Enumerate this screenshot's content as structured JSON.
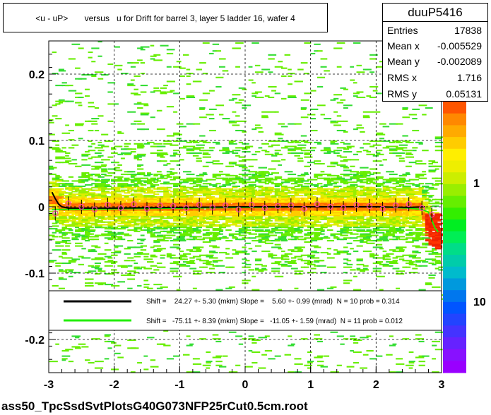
{
  "title": "<u - uP>       versus   u for Drift for barrel 3, layer 5 ladder 16, wafer 4",
  "stats": {
    "name": "duuP5416",
    "rows": [
      {
        "label": "Entries",
        "value": "17838"
      },
      {
        "label": "Mean x",
        "value": "-0.005529"
      },
      {
        "label": "Mean y",
        "value": "-0.002089"
      },
      {
        "label": "RMS x",
        "value": "1.716"
      },
      {
        "label": "RMS y",
        "value": "0.05131"
      }
    ]
  },
  "footer": "ass50_TpcSsdSvtPlotsG40G073NFP25rCut0.5cm.root",
  "colors": {
    "black_fit": "#000000",
    "green_fit": "#22ee00",
    "profile_marker": "#ff44aa",
    "band_core": "#ff6600"
  },
  "chart_data": {
    "type": "heatmap",
    "xlim": [
      -3,
      3
    ],
    "ylim": [
      -0.25,
      0.25
    ],
    "x_ticks": [
      -3,
      -2,
      -1,
      0,
      1,
      2,
      3
    ],
    "y_ticks": [
      0.2,
      0.1,
      0,
      -0.1,
      -0.2
    ],
    "x_tick_labels": [
      "-3",
      "-2",
      "-1",
      "0",
      "1",
      "2",
      "3"
    ],
    "y_tick_labels": [
      "0.2",
      "0.1",
      "0",
      "-0.1",
      "-0.2"
    ],
    "grid": true,
    "colorbar": {
      "labels": [
        "1",
        "10"
      ],
      "label_positions": [
        1,
        10
      ]
    },
    "legend": {
      "placement": "lower-center",
      "entries": [
        {
          "color": "#000000",
          "text": "Shift =    24.27 +- 5.30 (mkm) Slope =    5.60 +- 0.99 (mrad)  N = 10 prob = 0.314"
        },
        {
          "color": "#22ee00",
          "text": "Shift =   -75.11 +- 8.39 (mkm) Slope =   -11.05 +- 1.59 (mrad)  N = 11 prob = 0.012"
        }
      ]
    },
    "profile": {
      "x": [
        -2.9,
        -2.7,
        -2.5,
        -2.3,
        -2.1,
        -1.9,
        -1.7,
        -1.5,
        -1.3,
        -1.1,
        -0.9,
        -0.7,
        -0.5,
        -0.3,
        -0.1,
        0.1,
        0.3,
        0.5,
        0.7,
        0.9,
        1.1,
        1.3,
        1.5,
        1.7,
        1.9,
        2.1,
        2.3,
        2.5,
        2.7,
        2.85
      ],
      "y": [
        -0.01,
        0.005,
        0.0,
        -0.004,
        0.003,
        -0.002,
        0.004,
        -0.003,
        0.002,
        0.001,
        -0.002,
        0.003,
        -0.001,
        0.002,
        -0.004,
        0.003,
        -0.002,
        0.001,
        0.002,
        -0.003,
        0.004,
        0.0,
        -0.002,
        0.003,
        0.001,
        -0.003,
        0.002,
        0.004,
        -0.002,
        -0.012
      ]
    },
    "black_fit": {
      "x": [
        -2.95,
        -2.9,
        -2.85,
        -2.8,
        -2.7,
        -2.5,
        -2.0,
        -1.0,
        0.0,
        1.0,
        2.0,
        2.5,
        2.75
      ],
      "y": [
        0.022,
        0.012,
        0.004,
        0.0,
        -0.002,
        -0.002,
        -0.002,
        -0.001,
        0.0,
        0.0,
        0.0,
        -0.001,
        0.0
      ]
    },
    "green_fit": {
      "x": [
        -2.95,
        -2.5,
        -2.0,
        -1.0,
        0.0,
        1.0,
        2.0,
        2.5,
        2.7,
        2.8,
        2.85,
        2.9,
        2.95
      ],
      "y": [
        -0.004,
        -0.004,
        -0.003,
        -0.002,
        -0.001,
        0.0,
        0.0,
        -0.002,
        -0.004,
        -0.008,
        -0.02,
        -0.032,
        -0.038
      ]
    }
  }
}
